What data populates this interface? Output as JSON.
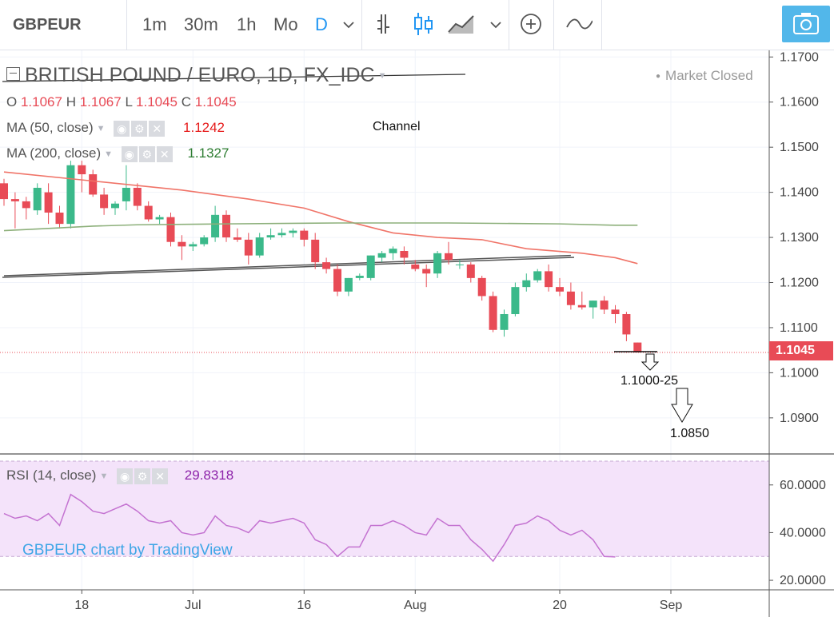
{
  "toolbar": {
    "symbol": "GBPEUR",
    "intervals": [
      "1m",
      "30m",
      "1h",
      "Mo",
      "D"
    ],
    "active_interval": "D",
    "icons": [
      "chevron-down-icon",
      "bar-chart-icon",
      "candlestick-icon",
      "area-chart-icon",
      "chevron-down-icon",
      "plus-circle-icon",
      "wave-indicator-icon",
      "camera-icon"
    ]
  },
  "legend": {
    "title": "BRITISH POUND / EURO, 1D, FX_IDC",
    "market_status": "Market Closed",
    "ohlc": {
      "o_label": "O",
      "o": "1.1067",
      "h_label": "H",
      "h": "1.1067",
      "l_label": "L",
      "l": "1.1045",
      "c_label": "C",
      "c": "1.1045"
    },
    "ma50": {
      "label": "MA (50, close)",
      "value": "1.1242",
      "color": "#e61b1b"
    },
    "ma200": {
      "label": "MA (200, close)",
      "value": "1.1327",
      "color": "#2e7d32"
    },
    "rsi": {
      "label": "RSI (14, close)",
      "value": "29.8318",
      "color": "#8e24aa"
    }
  },
  "annotations": {
    "channel": "Channel",
    "target1": "1.1000-25",
    "target2": "1.0850"
  },
  "watermark": "GBPEUR chart by TradingView",
  "colors": {
    "up": "#3bb98a",
    "down": "#e84b56",
    "ma50": "#f07468",
    "ma200": "#8db07b",
    "rsi": "#c473d1",
    "rsi_band": "#f4e3fa",
    "accent": "#2196f3"
  },
  "chart_data": {
    "type": "candlestick",
    "price_axis": {
      "ticks": [
        "1.1700",
        "1.1600",
        "1.1500",
        "1.1400",
        "1.1300",
        "1.1200",
        "1.1100",
        "1.1000",
        "1.0900"
      ],
      "range": [
        1.082,
        1.172
      ],
      "last_price": "1.1045"
    },
    "rsi_axis": {
      "ticks": [
        "60.0000",
        "40.0000",
        "20.0000"
      ],
      "range": [
        16,
        73
      ],
      "band": [
        30,
        70
      ]
    },
    "x_ticks": [
      {
        "index": 7,
        "label": "18"
      },
      {
        "index": 17,
        "label": "Jul"
      },
      {
        "index": 27,
        "label": "16"
      },
      {
        "index": 37,
        "label": "Aug"
      },
      {
        "index": 50,
        "label": "20"
      },
      {
        "index": 60,
        "label": "Sep"
      }
    ],
    "candles": [
      [
        1.142,
        1.143,
        1.137,
        1.1385
      ],
      [
        1.1385,
        1.14,
        1.132,
        1.138
      ],
      [
        1.138,
        1.139,
        1.134,
        1.1365
      ],
      [
        1.136,
        1.142,
        1.135,
        1.141
      ],
      [
        1.14,
        1.142,
        1.133,
        1.1355
      ],
      [
        1.1355,
        1.137,
        1.132,
        1.133
      ],
      [
        1.133,
        1.147,
        1.132,
        1.146
      ],
      [
        1.146,
        1.147,
        1.14,
        1.144
      ],
      [
        1.144,
        1.145,
        1.139,
        1.1395
      ],
      [
        1.1395,
        1.141,
        1.135,
        1.1365
      ],
      [
        1.1365,
        1.138,
        1.135,
        1.1375
      ],
      [
        1.138,
        1.146,
        1.136,
        1.141
      ],
      [
        1.141,
        1.142,
        1.136,
        1.137
      ],
      [
        1.137,
        1.138,
        1.1335,
        1.134
      ],
      [
        1.134,
        1.135,
        1.133,
        1.1345
      ],
      [
        1.1345,
        1.1355,
        1.128,
        1.129
      ],
      [
        1.129,
        1.1305,
        1.125,
        1.128
      ],
      [
        1.128,
        1.129,
        1.127,
        1.1285
      ],
      [
        1.1285,
        1.1305,
        1.128,
        1.13
      ],
      [
        1.13,
        1.137,
        1.129,
        1.135
      ],
      [
        1.135,
        1.136,
        1.129,
        1.13
      ],
      [
        1.13,
        1.132,
        1.129,
        1.1295
      ],
      [
        1.1295,
        1.131,
        1.124,
        1.126
      ],
      [
        1.126,
        1.131,
        1.1255,
        1.13
      ],
      [
        1.13,
        1.132,
        1.1295,
        1.1305
      ],
      [
        1.1305,
        1.132,
        1.13,
        1.131
      ],
      [
        1.131,
        1.132,
        1.13,
        1.1315
      ],
      [
        1.1315,
        1.132,
        1.128,
        1.1295
      ],
      [
        1.1295,
        1.131,
        1.123,
        1.1245
      ],
      [
        1.1245,
        1.1255,
        1.122,
        1.123
      ],
      [
        1.123,
        1.124,
        1.117,
        1.118
      ],
      [
        1.118,
        1.121,
        1.117,
        1.121
      ],
      [
        1.121,
        1.122,
        1.1205,
        1.1215
      ],
      [
        1.121,
        1.126,
        1.1205,
        1.126
      ],
      [
        1.1255,
        1.127,
        1.1245,
        1.1265
      ],
      [
        1.1265,
        1.128,
        1.125,
        1.1275
      ],
      [
        1.127,
        1.128,
        1.124,
        1.1255
      ],
      [
        1.124,
        1.125,
        1.1225,
        1.123
      ],
      [
        1.123,
        1.124,
        1.119,
        1.122
      ],
      [
        1.122,
        1.127,
        1.121,
        1.1265
      ],
      [
        1.1265,
        1.129,
        1.124,
        1.125
      ],
      [
        1.124,
        1.125,
        1.123,
        1.124
      ],
      [
        1.124,
        1.1245,
        1.12,
        1.121
      ],
      [
        1.121,
        1.1215,
        1.116,
        1.117
      ],
      [
        1.117,
        1.118,
        1.109,
        1.1095
      ],
      [
        1.1095,
        1.114,
        1.108,
        1.113
      ],
      [
        1.113,
        1.12,
        1.1125,
        1.119
      ],
      [
        1.119,
        1.122,
        1.118,
        1.1205
      ],
      [
        1.1205,
        1.123,
        1.12,
        1.1225
      ],
      [
        1.1225,
        1.124,
        1.118,
        1.119
      ],
      [
        1.119,
        1.121,
        1.117,
        1.118
      ],
      [
        1.118,
        1.12,
        1.114,
        1.115
      ],
      [
        1.115,
        1.118,
        1.114,
        1.1145
      ],
      [
        1.1145,
        1.116,
        1.112,
        1.116
      ],
      [
        1.116,
        1.117,
        1.113,
        1.114
      ],
      [
        1.114,
        1.115,
        1.111,
        1.113
      ],
      [
        1.113,
        1.1135,
        1.107,
        1.1085
      ],
      [
        1.1067,
        1.1067,
        1.1045,
        1.1045
      ]
    ],
    "ma50": [
      [
        0,
        1.1445
      ],
      [
        8,
        1.1425
      ],
      [
        16,
        1.1405
      ],
      [
        22,
        1.1385
      ],
      [
        27,
        1.1365
      ],
      [
        31,
        1.1335
      ],
      [
        35,
        1.131
      ],
      [
        39,
        1.13
      ],
      [
        43,
        1.1295
      ],
      [
        47,
        1.1275
      ],
      [
        52,
        1.1265
      ],
      [
        55,
        1.1255
      ],
      [
        57,
        1.1242
      ]
    ],
    "ma200": [
      [
        0,
        1.1315
      ],
      [
        4,
        1.132
      ],
      [
        8,
        1.1325
      ],
      [
        12,
        1.1328
      ],
      [
        20,
        1.133
      ],
      [
        30,
        1.1332
      ],
      [
        40,
        1.1332
      ],
      [
        50,
        1.133
      ],
      [
        55,
        1.1327
      ],
      [
        57,
        1.1327
      ]
    ],
    "channel_upper": [
      [
        0,
        1.1285
      ],
      [
        27,
        1.1325
      ],
      [
        39,
        1.135
      ],
      [
        47,
        1.138
      ],
      [
        52,
        1.1395
      ]
    ],
    "channel_lower": [
      [
        0,
        1.1215
      ],
      [
        51,
        1.126
      ]
    ],
    "rsi": [
      [
        0,
        48
      ],
      [
        1,
        46
      ],
      [
        2,
        47
      ],
      [
        3,
        45
      ],
      [
        4,
        48
      ],
      [
        5,
        43
      ],
      [
        6,
        56
      ],
      [
        7,
        53
      ],
      [
        8,
        49
      ],
      [
        9,
        48
      ],
      [
        10,
        50
      ],
      [
        11,
        52
      ],
      [
        12,
        49
      ],
      [
        13,
        45
      ],
      [
        14,
        44
      ],
      [
        15,
        45
      ],
      [
        16,
        40
      ],
      [
        17,
        39
      ],
      [
        18,
        40
      ],
      [
        19,
        47
      ],
      [
        20,
        43
      ],
      [
        21,
        42
      ],
      [
        22,
        40
      ],
      [
        23,
        45
      ],
      [
        24,
        44
      ],
      [
        25,
        45
      ],
      [
        26,
        46
      ],
      [
        27,
        44
      ],
      [
        28,
        37
      ],
      [
        29,
        35
      ],
      [
        30,
        30
      ],
      [
        31,
        34
      ],
      [
        32,
        34
      ],
      [
        33,
        43
      ],
      [
        34,
        43
      ],
      [
        35,
        45
      ],
      [
        36,
        43
      ],
      [
        37,
        40
      ],
      [
        38,
        39
      ],
      [
        39,
        46
      ],
      [
        40,
        43
      ],
      [
        41,
        43
      ],
      [
        42,
        37
      ],
      [
        43,
        33
      ],
      [
        44,
        28
      ],
      [
        45,
        35
      ],
      [
        46,
        43
      ],
      [
        47,
        44
      ],
      [
        48,
        47
      ],
      [
        49,
        45
      ],
      [
        50,
        41
      ],
      [
        51,
        39
      ],
      [
        52,
        41
      ],
      [
        53,
        37
      ],
      [
        54,
        30
      ],
      [
        55,
        29.8
      ]
    ]
  }
}
